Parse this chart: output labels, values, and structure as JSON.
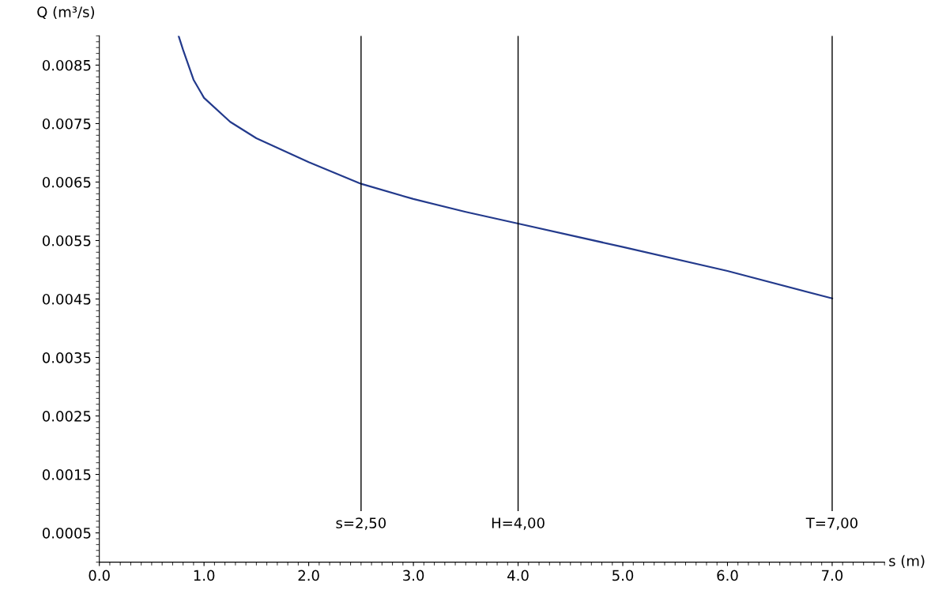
{
  "chart_data": {
    "type": "line",
    "xlabel": "s (m)",
    "ylabel": "Q (m³/s)",
    "x": [
      0.757,
      0.8,
      0.9,
      1.0,
      1.25,
      1.5,
      2.0,
      2.5,
      3.0,
      3.5,
      4.0,
      5.0,
      6.0,
      7.0
    ],
    "series": [
      {
        "color": "#233a8c",
        "values": [
          0.009,
          0.00876,
          0.00825,
          0.00794,
          0.00753,
          0.00725,
          0.00684,
          0.00647,
          0.00621,
          0.00599,
          0.00579,
          0.00539,
          0.00498,
          0.00451
        ]
      }
    ],
    "xlim": [
      0,
      7.5
    ],
    "ylim": [
      0,
      0.009
    ],
    "xticks": [
      {
        "value": 0,
        "label": "0.0"
      },
      {
        "value": 1,
        "label": "1.0"
      },
      {
        "value": 2,
        "label": "2.0"
      },
      {
        "value": 3,
        "label": "3.0"
      },
      {
        "value": 4,
        "label": "4.0"
      },
      {
        "value": 5,
        "label": "5.0"
      },
      {
        "value": 6,
        "label": "6.0"
      },
      {
        "value": 7,
        "label": "7.0"
      }
    ],
    "yticks": [
      0.0005,
      0.0015,
      0.0025,
      0.0035,
      0.0045,
      0.0055,
      0.0065,
      0.0075,
      0.0085
    ],
    "ref_lines": [
      {
        "axis": "x",
        "value": 2.5,
        "label": "s=2,50",
        "color": "#000000"
      },
      {
        "axis": "x",
        "value": 4.0,
        "label": "H=4,00",
        "color": "#000000"
      },
      {
        "axis": "x",
        "value": 7.0,
        "label": "T=7,00",
        "color": "#000000"
      }
    ],
    "grid": false,
    "legend": false,
    "marker": "none",
    "line_style": "solid"
  }
}
